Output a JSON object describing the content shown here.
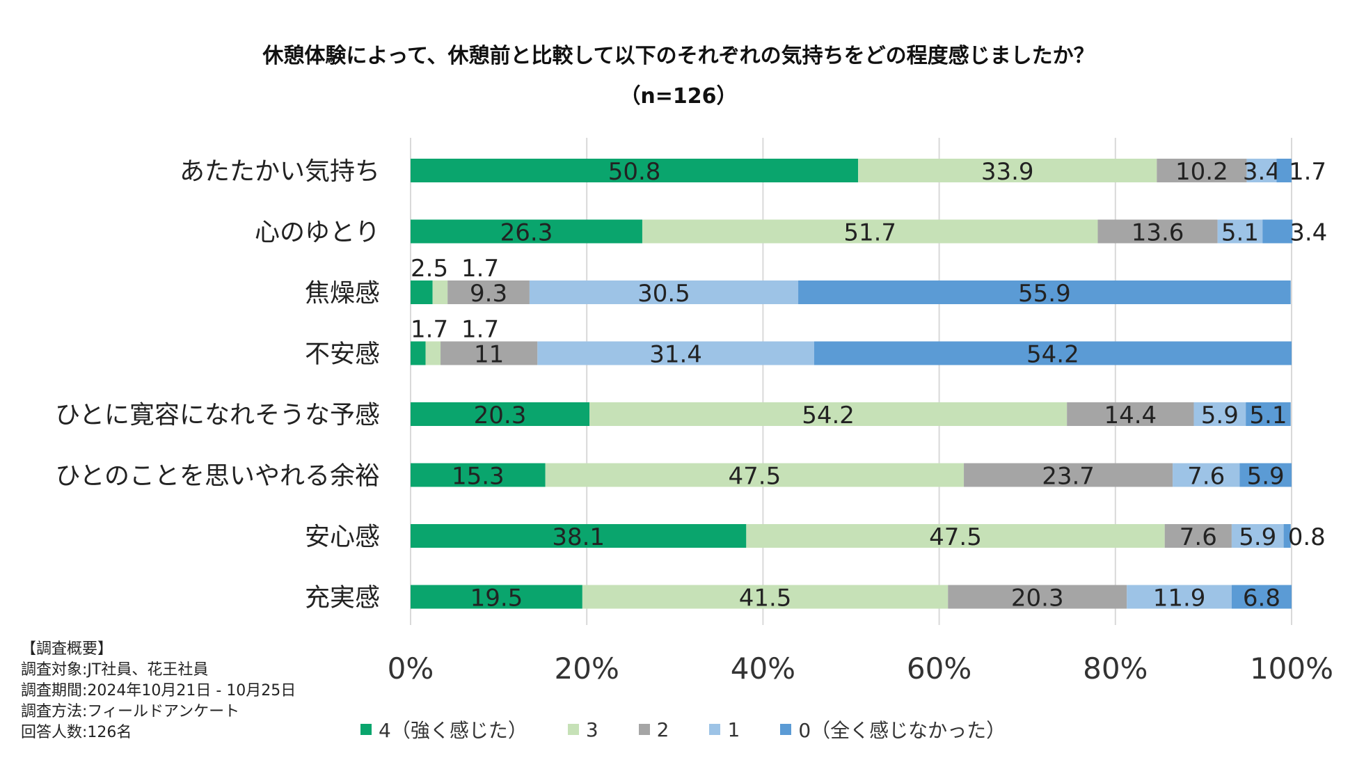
{
  "chart_data": {
    "type": "bar",
    "orientation": "horizontal",
    "stacked": true,
    "title": "休憩体験によって、休憩前と比較して以下のそれぞれの気持ちをどの程度感じましたか？",
    "subtitle": "（n=126）",
    "categories": [
      "あたたかい気持ち",
      "心のゆとり",
      "焦燥感",
      "不安感",
      "ひとに寛容になれそうな予感",
      "ひとのことを思いやれる余裕",
      "安心感",
      "充実感"
    ],
    "series": [
      {
        "name": "4（強く感じた）",
        "color": "#0aa56d",
        "values": [
          50.8,
          26.3,
          2.5,
          1.7,
          20.3,
          15.3,
          38.1,
          19.5
        ]
      },
      {
        "name": "3",
        "color": "#c6e1b7",
        "values": [
          33.9,
          51.7,
          1.7,
          1.7,
          54.2,
          47.5,
          47.5,
          41.5
        ]
      },
      {
        "name": "2",
        "color": "#a5a5a5",
        "values": [
          10.2,
          13.6,
          9.3,
          11,
          14.4,
          23.7,
          7.6,
          20.3
        ]
      },
      {
        "name": "1",
        "color": "#9dc3e6",
        "values": [
          3.4,
          5.1,
          30.5,
          31.4,
          5.9,
          7.6,
          5.9,
          11.9
        ]
      },
      {
        "name": "0（全く感じなかった）",
        "color": "#5b9bd5",
        "values": [
          1.7,
          3.4,
          55.9,
          54.2,
          5.1,
          5.9,
          0.8,
          6.8
        ]
      }
    ],
    "xlim": [
      0,
      100
    ],
    "xticks": [
      "0%",
      "20%",
      "40%",
      "60%",
      "80%",
      "100%"
    ],
    "grid": true,
    "legend_position": "bottom"
  },
  "survey": {
    "heading": "【調査概要】",
    "lines": [
      "調査対象:JT社員、花王社員",
      "調査期間:2024年10月21日 - 10月25日",
      "調査方法:フィールドアンケート",
      "回答人数:126名"
    ]
  }
}
